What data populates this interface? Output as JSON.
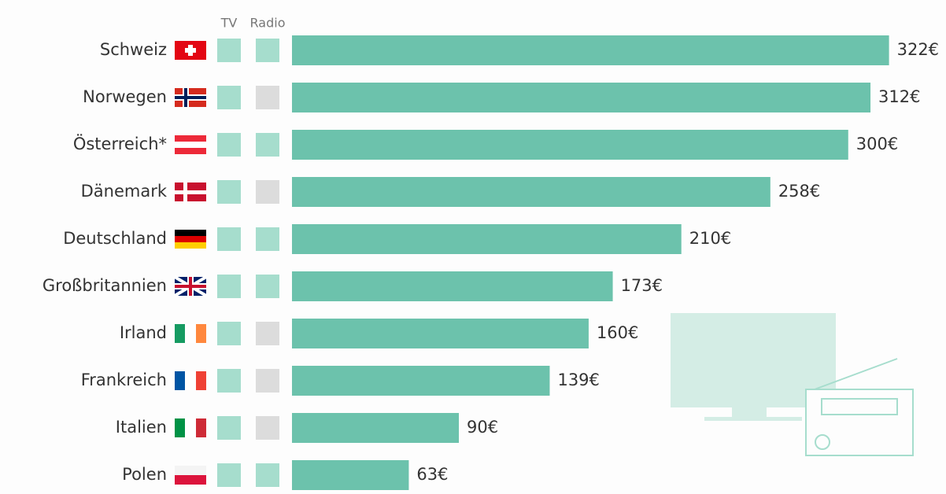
{
  "chart_data": {
    "type": "bar",
    "categories": [
      "Schweiz",
      "Norwegen",
      "Österreich*",
      "Dänemark",
      "Deutschland",
      "Großbritannien",
      "Irland",
      "Frankreich",
      "Italien",
      "Polen"
    ],
    "values": [
      322,
      312,
      300,
      258,
      210,
      173,
      160,
      139,
      90,
      63
    ],
    "value_labels": [
      "322€",
      "312€",
      "300€",
      "258€",
      "210€",
      "173€",
      "160€",
      "139€",
      "90€",
      "63€"
    ],
    "color": "#6cc2ac",
    "xlim": [
      0,
      340
    ],
    "indicator_columns": [
      {
        "name": "TV",
        "color": "#a6ddcd",
        "values": [
          true,
          true,
          true,
          true,
          true,
          true,
          true,
          true,
          true,
          true
        ]
      },
      {
        "name": "Radio",
        "color": "#a6ddcd",
        "values": [
          true,
          false,
          true,
          false,
          true,
          true,
          false,
          false,
          false,
          true
        ]
      }
    ],
    "indicator_off_color": "#dcdcdc"
  }
}
